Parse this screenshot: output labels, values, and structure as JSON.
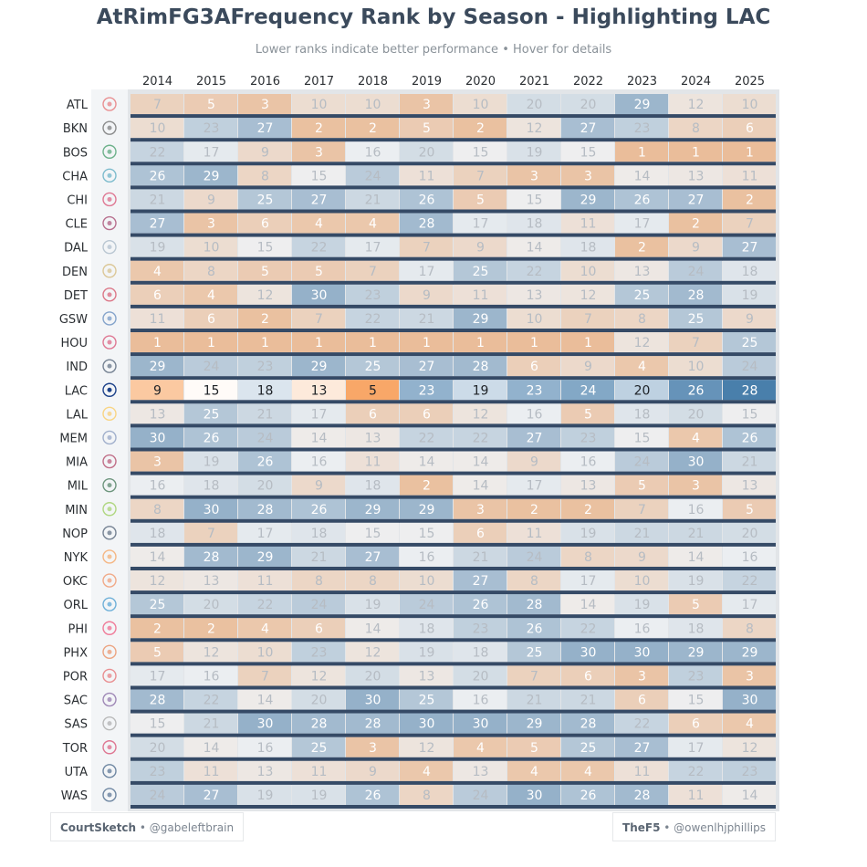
{
  "chart_data": {
    "type": "heatmap",
    "title": "AtRimFG3AFrequency Rank by Season - Highlighting LAC",
    "subtitle": "Lower ranks indicate better performance • Hover for details",
    "highlight_team": "LAC",
    "seasons": [
      "2014",
      "2015",
      "2016",
      "2017",
      "2018",
      "2019",
      "2020",
      "2021",
      "2022",
      "2023",
      "2024",
      "2025"
    ],
    "teams": [
      "ATL",
      "BKN",
      "BOS",
      "CHA",
      "CHI",
      "CLE",
      "DAL",
      "DEN",
      "DET",
      "GSW",
      "HOU",
      "IND",
      "LAC",
      "LAL",
      "MEM",
      "MIA",
      "MIL",
      "MIN",
      "NOP",
      "NYK",
      "OKC",
      "ORL",
      "PHI",
      "PHX",
      "POR",
      "SAC",
      "SAS",
      "TOR",
      "UTA",
      "WAS"
    ],
    "ranks": [
      [
        7,
        5,
        3,
        10,
        10,
        3,
        10,
        20,
        20,
        29,
        12,
        10
      ],
      [
        10,
        23,
        27,
        2,
        2,
        5,
        2,
        12,
        27,
        23,
        8,
        6
      ],
      [
        22,
        17,
        9,
        3,
        16,
        20,
        15,
        19,
        15,
        1,
        1,
        1
      ],
      [
        26,
        29,
        8,
        15,
        24,
        11,
        7,
        3,
        3,
        14,
        13,
        11
      ],
      [
        21,
        9,
        25,
        27,
        21,
        26,
        5,
        15,
        29,
        26,
        27,
        2
      ],
      [
        27,
        3,
        6,
        4,
        4,
        28,
        17,
        18,
        11,
        17,
        2,
        7
      ],
      [
        19,
        10,
        15,
        22,
        17,
        7,
        9,
        14,
        18,
        2,
        9,
        27
      ],
      [
        4,
        8,
        5,
        5,
        7,
        17,
        25,
        22,
        10,
        13,
        24,
        18
      ],
      [
        6,
        4,
        12,
        30,
        23,
        9,
        11,
        13,
        12,
        25,
        28,
        19
      ],
      [
        11,
        6,
        2,
        7,
        22,
        21,
        29,
        10,
        7,
        8,
        25,
        9
      ],
      [
        1,
        1,
        1,
        1,
        1,
        1,
        1,
        1,
        1,
        12,
        7,
        25
      ],
      [
        29,
        24,
        23,
        29,
        25,
        27,
        28,
        6,
        9,
        4,
        10,
        24
      ],
      [
        9,
        15,
        18,
        13,
        5,
        23,
        19,
        23,
        24,
        20,
        26,
        28
      ],
      [
        13,
        25,
        21,
        17,
        6,
        6,
        12,
        16,
        5,
        18,
        20,
        15
      ],
      [
        30,
        26,
        24,
        14,
        13,
        22,
        22,
        27,
        23,
        15,
        4,
        26
      ],
      [
        3,
        19,
        26,
        16,
        11,
        14,
        14,
        9,
        16,
        24,
        30,
        21
      ],
      [
        16,
        18,
        20,
        9,
        18,
        2,
        14,
        17,
        13,
        5,
        3,
        13
      ],
      [
        8,
        30,
        28,
        26,
        29,
        29,
        3,
        2,
        2,
        7,
        16,
        5
      ],
      [
        18,
        7,
        17,
        18,
        15,
        15,
        6,
        11,
        19,
        21,
        21,
        20
      ],
      [
        14,
        28,
        29,
        21,
        27,
        16,
        21,
        24,
        8,
        9,
        14,
        16
      ],
      [
        12,
        13,
        11,
        8,
        8,
        10,
        27,
        8,
        17,
        10,
        19,
        22
      ],
      [
        25,
        20,
        22,
        24,
        19,
        24,
        26,
        28,
        14,
        19,
        5,
        17
      ],
      [
        2,
        2,
        4,
        6,
        14,
        18,
        23,
        26,
        22,
        16,
        18,
        8
      ],
      [
        5,
        12,
        10,
        23,
        12,
        19,
        18,
        25,
        30,
        30,
        29,
        29
      ],
      [
        17,
        16,
        7,
        12,
        20,
        13,
        20,
        7,
        6,
        3,
        23,
        3
      ],
      [
        28,
        22,
        14,
        20,
        30,
        25,
        16,
        21,
        21,
        6,
        15,
        30
      ],
      [
        15,
        21,
        30,
        28,
        28,
        30,
        30,
        29,
        28,
        22,
        6,
        4
      ],
      [
        20,
        14,
        16,
        25,
        3,
        12,
        4,
        5,
        25,
        27,
        17,
        12
      ],
      [
        23,
        11,
        13,
        11,
        9,
        4,
        13,
        4,
        4,
        11,
        22,
        23
      ],
      [
        24,
        27,
        19,
        19,
        26,
        8,
        24,
        30,
        26,
        28,
        11,
        14
      ]
    ],
    "colors": {
      "best": "#f5862e",
      "worst": "#2c6a9e",
      "separator": "#354a66"
    }
  },
  "team_icons": [
    "hawks-logo-icon",
    "nets-logo-icon",
    "celtics-logo-icon",
    "hornets-logo-icon",
    "bulls-logo-icon",
    "cavaliers-logo-icon",
    "mavericks-logo-icon",
    "nuggets-logo-icon",
    "pistons-logo-icon",
    "warriors-logo-icon",
    "rockets-logo-icon",
    "pacers-logo-icon",
    "clippers-logo-icon",
    "lakers-logo-icon",
    "grizzlies-logo-icon",
    "heat-logo-icon",
    "bucks-logo-icon",
    "timberwolves-logo-icon",
    "pelicans-logo-icon",
    "knicks-logo-icon",
    "thunder-logo-icon",
    "magic-logo-icon",
    "76ers-logo-icon",
    "suns-logo-icon",
    "blazers-logo-icon",
    "kings-logo-icon",
    "spurs-logo-icon",
    "raptors-logo-icon",
    "jazz-logo-icon",
    "wizards-logo-icon"
  ],
  "team_icon_colors": [
    "#e03a3e",
    "#333333",
    "#007a33",
    "#1d8cab",
    "#ce1141",
    "#860038",
    "#8aa0b5",
    "#c8a34b",
    "#c8102e",
    "#2a61a8",
    "#ce1141",
    "#0c2340",
    "#1d428a",
    "#fdb927",
    "#5d76a9",
    "#98002e",
    "#00471b",
    "#78be20",
    "#0c2340",
    "#f58426",
    "#ef6b2d",
    "#0077c0",
    "#ed174c",
    "#e56020",
    "#e03a3e",
    "#5a2d81",
    "#888888",
    "#ce1141",
    "#002b5c",
    "#002b5c"
  ],
  "footer": {
    "left_brand": "CourtSketch",
    "left_handle": " • @gabeleftbrain",
    "right_brand": "TheF5",
    "right_handle": " • @owenlhjphillips"
  }
}
